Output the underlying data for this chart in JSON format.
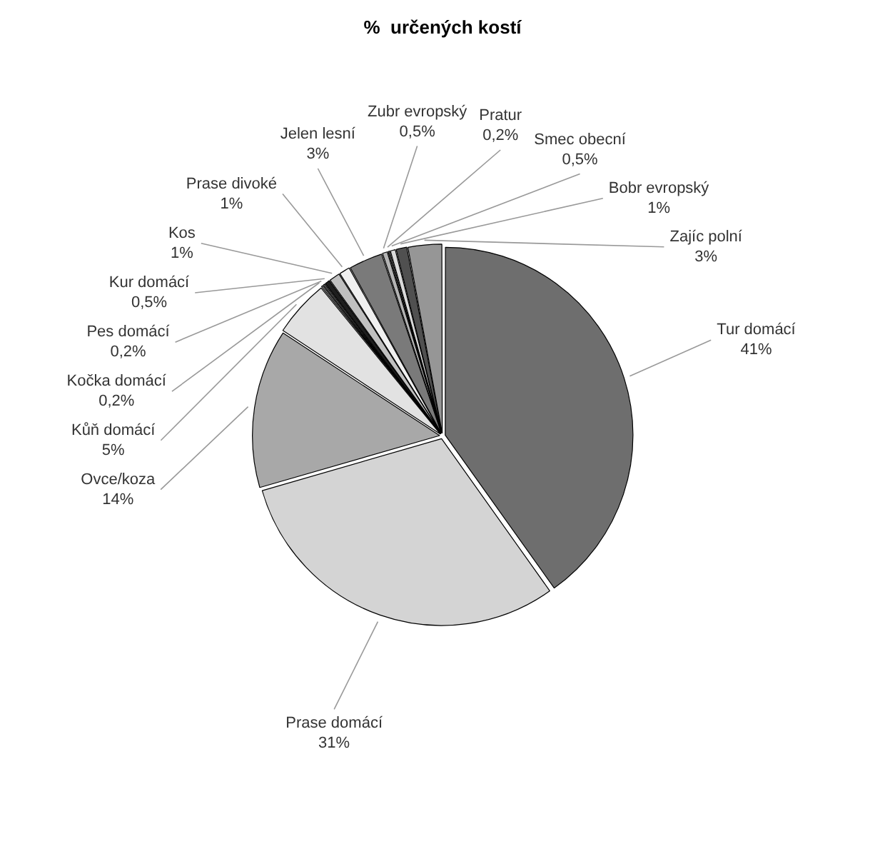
{
  "chart_data": {
    "type": "pie",
    "title": "%  určených kostí",
    "categories": [
      "Tur domácí",
      "Prase domácí",
      "Ovce/koza",
      "Kůň domácí",
      "Kočka domácí",
      "Pes domácí",
      "Kur domácí",
      "Kos",
      "Prase divoké",
      "Jelen lesní",
      "Zubr evropský",
      "Pratur",
      "Smec obecní",
      "Bobr evropský",
      "Zajíc polní"
    ],
    "values": [
      41,
      31,
      14,
      5,
      0.2,
      0.2,
      0.5,
      1,
      1,
      3,
      0.5,
      0.2,
      0.5,
      1,
      3
    ],
    "value_labels": [
      "41%",
      "31%",
      "14%",
      "5%",
      "0,2%",
      "0,2%",
      "0,5%",
      "1%",
      "1%",
      "3%",
      "0,5%",
      "0,2%",
      "0,5%",
      "1%",
      "3%"
    ],
    "colors": [
      "#6e6e6e",
      "#d4d4d4",
      "#a8a8a8",
      "#e2e2e2",
      "#c4c4c4",
      "#8c8c8c",
      "#1e1e1e",
      "#c0c0c0",
      "#f0f0f0",
      "#7a7a7a",
      "#b4b4b4",
      "#6a6a6a",
      "#dadada",
      "#505050",
      "#969696"
    ]
  }
}
